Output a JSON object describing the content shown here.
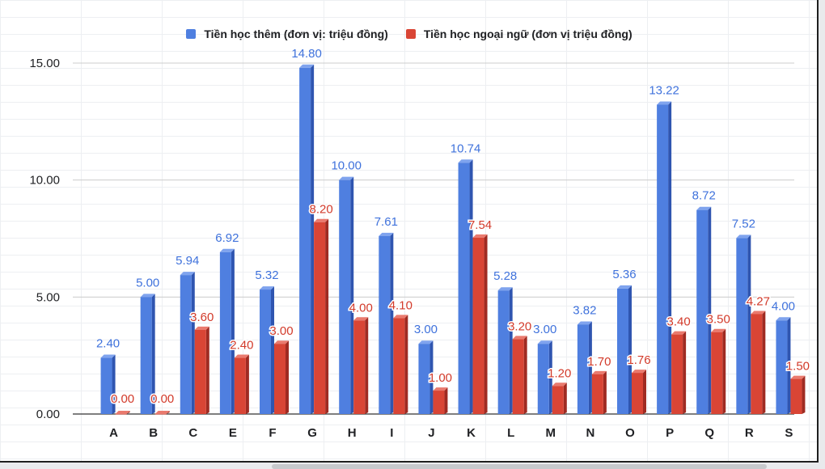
{
  "chart_data": {
    "type": "bar",
    "title": "",
    "xlabel": "",
    "ylabel": "",
    "ylim": [
      0,
      15
    ],
    "y_ticks": [
      "0.00",
      "5.00",
      "10.00",
      "15.00"
    ],
    "grid": true,
    "legend_position": "top-center",
    "categories": [
      "A",
      "B",
      "C",
      "E",
      "F",
      "G",
      "H",
      "I",
      "J",
      "K",
      "L",
      "M",
      "N",
      "O",
      "P",
      "Q",
      "R",
      "S"
    ],
    "series": [
      {
        "name": "Tiền học thêm (đơn vị: triệu đồng)",
        "color": "#4f7fe0",
        "values": [
          2.4,
          5.0,
          5.94,
          6.92,
          5.32,
          14.8,
          10.0,
          7.61,
          3.0,
          10.74,
          5.28,
          3.0,
          3.82,
          5.36,
          13.22,
          8.72,
          7.52,
          4.0
        ],
        "labels": [
          "2.40",
          "5.00",
          "5.94",
          "6.92",
          "5.32",
          "14.80",
          "10.00",
          "7.61",
          "3.00",
          "10.74",
          "5.28",
          "3.00",
          "3.82",
          "5.36",
          "13.22",
          "8.72",
          "7.52",
          "4.00"
        ]
      },
      {
        "name": "Tiền học ngoại ngữ (đơn vị triệu đồng)",
        "color": "#d94535",
        "values": [
          0.0,
          0.0,
          3.6,
          2.4,
          3.0,
          8.2,
          4.0,
          4.1,
          1.0,
          7.54,
          3.2,
          1.2,
          1.7,
          1.76,
          3.4,
          3.5,
          4.27,
          1.5
        ],
        "labels": [
          "0.00",
          "0.00",
          "3.60",
          "2.40",
          "3.00",
          "8.20",
          "4.00",
          "4.10",
          "1.00",
          "7.54",
          "3.20",
          "1.20",
          "1.70",
          "1.76",
          "3.40",
          "3.50",
          "4.27",
          "1.50"
        ]
      }
    ]
  }
}
